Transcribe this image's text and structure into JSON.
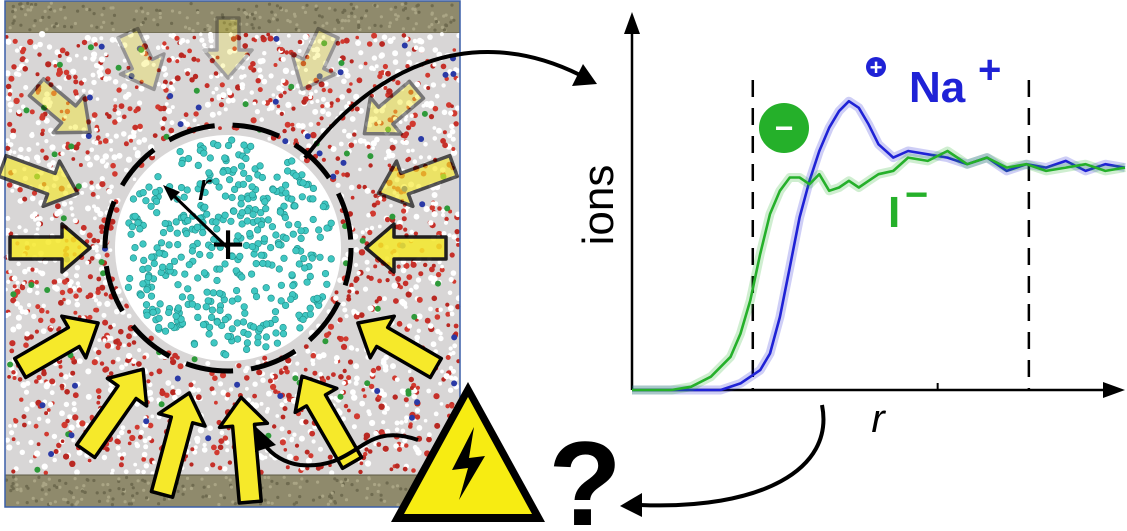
{
  "simulation": {
    "radius_label": "r",
    "center_marker": "+"
  },
  "plot": {
    "x_axis_label": "r",
    "y_axis_label": "ions",
    "na_label": "Na",
    "na_charge": "+",
    "i_label": "I",
    "i_charge": "−",
    "anion_badge": "−",
    "cation_badge": "+",
    "question_mark": "?",
    "colors": {
      "na": "#1f22d6",
      "i": "#25b02a",
      "axis": "#000000"
    },
    "series": [
      {
        "name": "Na",
        "color": "#1f22d6",
        "x": [
          0.0,
          0.15,
          0.18,
          0.22,
          0.26,
          0.28,
          0.3,
          0.32,
          0.34,
          0.36,
          0.38,
          0.4,
          0.42,
          0.44,
          0.46,
          0.48,
          0.5,
          0.53,
          0.56,
          0.6,
          0.64,
          0.68,
          0.72,
          0.76,
          0.8,
          0.84,
          0.88,
          0.92,
          0.96,
          1.0
        ],
        "y": [
          0.0,
          0.0,
          0.0,
          0.02,
          0.06,
          0.11,
          0.22,
          0.37,
          0.52,
          0.63,
          0.72,
          0.79,
          0.84,
          0.87,
          0.85,
          0.8,
          0.74,
          0.7,
          0.72,
          0.71,
          0.7,
          0.68,
          0.7,
          0.66,
          0.68,
          0.67,
          0.69,
          0.66,
          0.68,
          0.67
        ]
      },
      {
        "name": "I",
        "color": "#25b02a",
        "x": [
          0.0,
          0.08,
          0.12,
          0.16,
          0.2,
          0.22,
          0.24,
          0.26,
          0.28,
          0.3,
          0.32,
          0.34,
          0.36,
          0.38,
          0.4,
          0.42,
          0.44,
          0.46,
          0.48,
          0.5,
          0.53,
          0.56,
          0.6,
          0.64,
          0.68,
          0.72,
          0.76,
          0.8,
          0.84,
          0.88,
          0.92,
          0.96,
          1.0
        ],
        "y": [
          0.0,
          0.0,
          0.01,
          0.04,
          0.1,
          0.17,
          0.27,
          0.41,
          0.53,
          0.6,
          0.64,
          0.64,
          0.62,
          0.65,
          0.6,
          0.61,
          0.63,
          0.61,
          0.63,
          0.65,
          0.66,
          0.7,
          0.69,
          0.72,
          0.68,
          0.7,
          0.67,
          0.68,
          0.66,
          0.67,
          0.68,
          0.66,
          0.67
        ]
      }
    ],
    "dashed_lines_x": [
      0.245,
      0.805
    ],
    "axis_tick_x": 0.62
  }
}
